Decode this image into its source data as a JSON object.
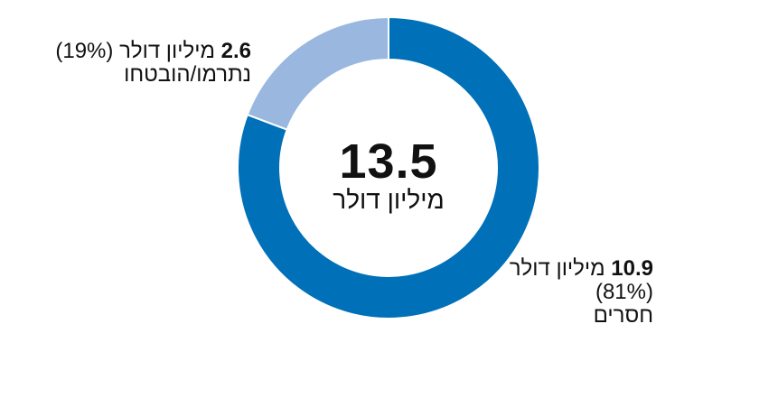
{
  "chart_data": {
    "type": "pie",
    "donut": true,
    "total": {
      "value": "13.5",
      "unit": "מיליון דולר"
    },
    "slices": [
      {
        "key": "gap",
        "value": 10.9,
        "percent": 81,
        "color": "#0070b8",
        "amount_text": "10.9",
        "unit_text": "מיליון דולר",
        "percent_text": "(81%)",
        "label": "חסרים"
      },
      {
        "key": "pledged",
        "value": 2.6,
        "percent": 19,
        "color": "#9ab7df",
        "amount_text": "2.6",
        "unit_text": "מיליון דולר (19%)",
        "label": "נתרמו/הובטחו"
      }
    ]
  }
}
